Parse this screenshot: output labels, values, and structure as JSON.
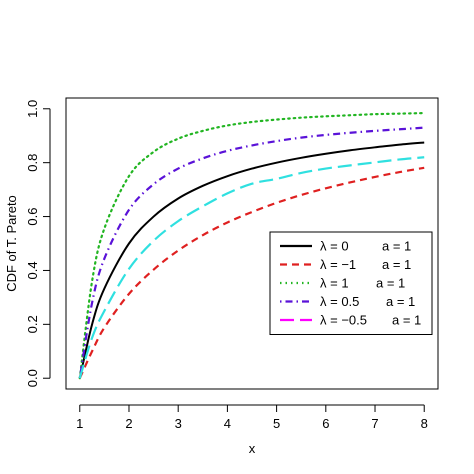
{
  "chart_data": {
    "type": "line",
    "title": "",
    "xlabel": "x",
    "ylabel": "CDF of T. Pareto",
    "xlim": [
      1,
      8
    ],
    "ylim": [
      0,
      1
    ],
    "x_ticks": [
      "1",
      "2",
      "3",
      "4",
      "5",
      "6",
      "7",
      "8"
    ],
    "y_ticks": [
      "0.0",
      "0.2",
      "0.4",
      "0.6",
      "0.8",
      "1.0"
    ],
    "grid": false,
    "legend_position": "bottom-right",
    "x": [
      1,
      1.25,
      1.5,
      2,
      2.5,
      3,
      3.5,
      4,
      4.5,
      5,
      5.5,
      6,
      6.5,
      7,
      7.5,
      8
    ],
    "series": [
      {
        "name": "λ = 0",
        "a_label": "a = 1",
        "color": "#000000",
        "dash": "solid",
        "values": [
          0,
          0.2,
          0.333,
          0.5,
          0.6,
          0.667,
          0.714,
          0.75,
          0.778,
          0.8,
          0.818,
          0.833,
          0.846,
          0.857,
          0.867,
          0.875
        ]
      },
      {
        "name": "λ = −1",
        "a_label": "a = 1",
        "color": "#DF2020",
        "dash": "dashed",
        "values": [
          0,
          0.1,
          0.188,
          0.313,
          0.403,
          0.474,
          0.531,
          0.578,
          0.617,
          0.651,
          0.68,
          0.705,
          0.727,
          0.747,
          0.765,
          0.781
        ]
      },
      {
        "name": "λ = 1",
        "a_label": "a = 1",
        "color": "#22B522",
        "dash": "dotted",
        "values": [
          0,
          0.36,
          0.556,
          0.75,
          0.84,
          0.889,
          0.918,
          0.938,
          0.951,
          0.96,
          0.967,
          0.972,
          0.976,
          0.98,
          0.982,
          0.984
        ]
      },
      {
        "name": "λ = 0.5",
        "a_label": "a = 1",
        "color": "#5A12D8",
        "dash": "dashdot",
        "values": [
          0,
          0.28,
          0.444,
          0.625,
          0.72,
          0.778,
          0.816,
          0.844,
          0.864,
          0.88,
          0.893,
          0.903,
          0.911,
          0.918,
          0.924,
          0.93
        ]
      },
      {
        "name": "λ = −0.5",
        "a_label": "a = 1",
        "color": "#2FE0E0",
        "dash": "longdash",
        "values": [
          0,
          0.15,
          0.25,
          0.406,
          0.51,
          0.583,
          0.638,
          0.686,
          0.722,
          0.74,
          0.762,
          0.778,
          0.79,
          0.801,
          0.812,
          0.82
        ]
      }
    ],
    "legend_colors": [
      "#000000",
      "#DF2020",
      "#22B522",
      "#5A12D8",
      "#FF00FF"
    ]
  }
}
